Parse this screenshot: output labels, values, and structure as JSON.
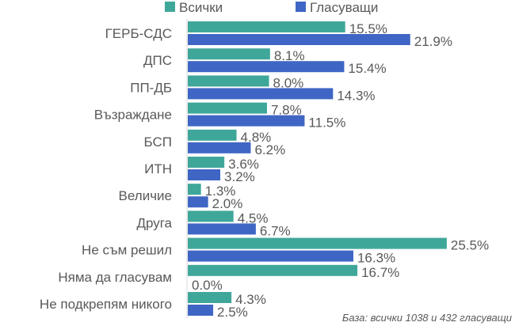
{
  "chart_data": {
    "type": "bar",
    "orientation": "horizontal",
    "categories": [
      "ГЕРБ-СДС",
      "ДПС",
      "ПП-ДБ",
      "Възраждане",
      "БСП",
      "ИТН",
      "Величие",
      "Друга",
      "Не съм решил",
      "Няма да гласувам",
      "Не подкрепям никого"
    ],
    "series": [
      {
        "name": "Всички",
        "color": "#3fa79a",
        "values": [
          15.5,
          8.1,
          8.0,
          7.8,
          4.8,
          3.6,
          1.3,
          4.5,
          25.5,
          16.7,
          4.3
        ],
        "labels": [
          "15.5%",
          "8.1%",
          "8.0%",
          "7.8%",
          "4.8%",
          "3.6%",
          "1.3%",
          "4.5%",
          "25.5%",
          "16.7%",
          "4.3%"
        ]
      },
      {
        "name": "Гласуващи",
        "color": "#3f66c4",
        "values": [
          21.9,
          15.4,
          14.3,
          11.5,
          6.2,
          3.2,
          2.0,
          6.7,
          16.3,
          0.0,
          2.5
        ],
        "labels": [
          "21.9%",
          "15.4%",
          "14.3%",
          "11.5%",
          "6.2%",
          "3.2%",
          "2.0%",
          "6.7%",
          "16.3%",
          "0.0%",
          "2.5%"
        ]
      }
    ],
    "xlim": [
      0,
      30
    ],
    "grid": false,
    "legend_position": "top",
    "note": "База: всички 1038 и 432 гласуващи"
  }
}
